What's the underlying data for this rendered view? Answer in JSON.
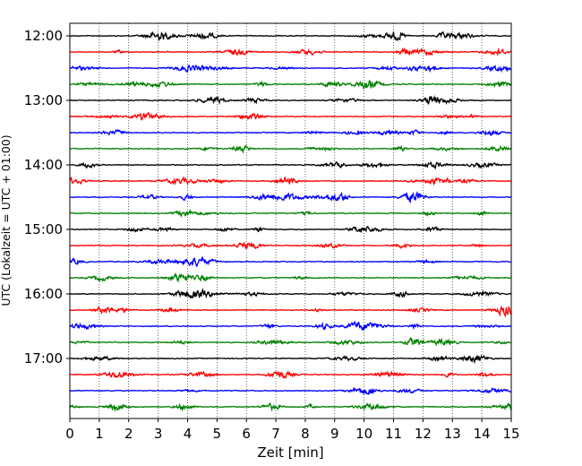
{
  "chart_data": {
    "type": "line",
    "title": "",
    "xlabel": "Zeit  [min]",
    "ylabel": "UTC (Lokalzeit = UTC + 01:00)",
    "xlim": [
      0,
      15
    ],
    "x_ticks": [
      "0",
      "1",
      "2",
      "3",
      "4",
      "5",
      "6",
      "7",
      "8",
      "9",
      "10",
      "11",
      "12",
      "13",
      "14",
      "15"
    ],
    "y_ticks": [
      {
        "label": "12:00",
        "minutes": 0
      },
      {
        "label": "13:00",
        "minutes": 60
      },
      {
        "label": "14:00",
        "minutes": 120
      },
      {
        "label": "15:00",
        "minutes": 180
      },
      {
        "label": "16:00",
        "minutes": 240
      },
      {
        "label": "17:00",
        "minutes": 300
      }
    ],
    "traces": {
      "start": "12:00",
      "end": "17:45",
      "interval_minutes": 15,
      "count": 24,
      "color_cycle": [
        "#000000",
        "#ff0000",
        "#0000ff",
        "#008000"
      ]
    },
    "grid": "vertical dotted at each minute"
  }
}
